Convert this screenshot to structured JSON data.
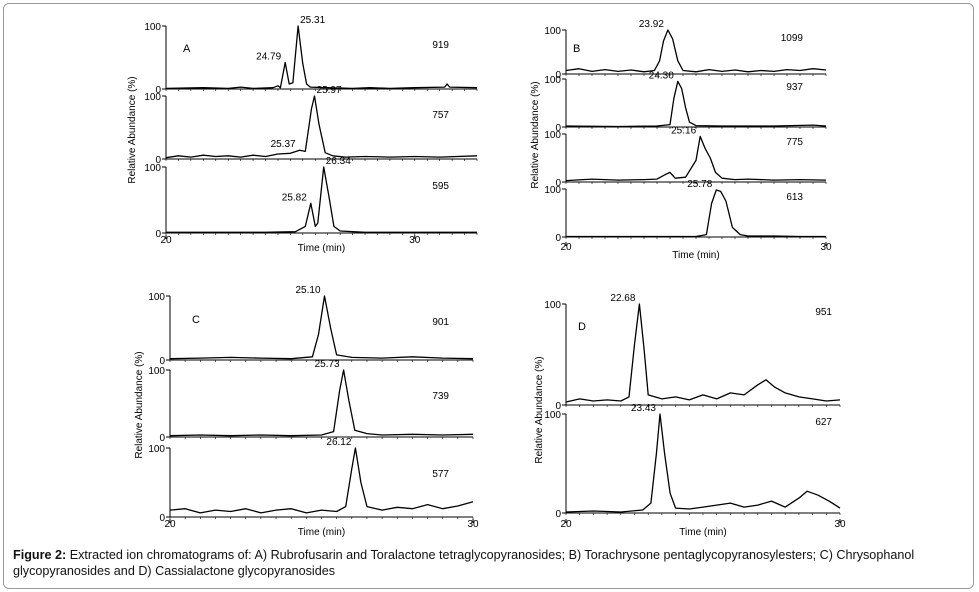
{
  "caption": {
    "label": "Figure 2:",
    "text": "Extracted ion chromatograms of: A) Rubrofusarin and Toralactone tetraglycopyranosides; B)  Torachrysone pentaglycopyranosylesters; C) Chrysophanol glycopyranosides and D) Cassialactone glycopyranosides"
  },
  "chart_data": [
    {
      "type": "line",
      "panel_label": "A",
      "xlabel": "Time (min)",
      "ylabel": "Relative Abundance (%)",
      "xlim": [
        20,
        32.5
      ],
      "x_ticks": [
        20,
        30
      ],
      "ylim": [
        0,
        100
      ],
      "y_ticks": [
        0,
        100
      ],
      "traces": [
        {
          "mz": "919",
          "peaks_rt": [
            "24.79",
            "25.31"
          ],
          "points": [
            [
              20,
              1
            ],
            [
              21.5,
              2
            ],
            [
              22.5,
              1
            ],
            [
              23,
              3
            ],
            [
              23.5,
              1
            ],
            [
              24.3,
              2
            ],
            [
              24.5,
              5
            ],
            [
              24.6,
              2
            ],
            [
              24.79,
              42
            ],
            [
              24.95,
              8
            ],
            [
              25.1,
              10
            ],
            [
              25.31,
              100
            ],
            [
              25.5,
              40
            ],
            [
              25.65,
              8
            ],
            [
              25.8,
              3
            ],
            [
              26.5,
              2
            ],
            [
              27.5,
              1
            ],
            [
              28.2,
              2
            ],
            [
              29,
              1
            ],
            [
              30,
              2
            ],
            [
              31.2,
              3
            ],
            [
              31.3,
              8
            ],
            [
              31.4,
              3
            ],
            [
              32.5,
              2
            ]
          ]
        },
        {
          "mz": "757",
          "peaks_rt": [
            "25.37",
            "25.97"
          ],
          "points": [
            [
              20,
              2
            ],
            [
              20.5,
              5
            ],
            [
              21,
              3
            ],
            [
              21.5,
              6
            ],
            [
              22,
              4
            ],
            [
              22.5,
              5
            ],
            [
              23,
              3
            ],
            [
              23.5,
              6
            ],
            [
              24,
              4
            ],
            [
              24.5,
              8
            ],
            [
              25,
              9
            ],
            [
              25.37,
              14
            ],
            [
              25.6,
              12
            ],
            [
              25.85,
              80
            ],
            [
              25.97,
              100
            ],
            [
              26.15,
              55
            ],
            [
              26.4,
              10
            ],
            [
              26.7,
              5
            ],
            [
              27.2,
              3
            ],
            [
              28,
              4
            ],
            [
              29,
              3
            ],
            [
              30,
              4
            ],
            [
              31,
              3
            ],
            [
              32.5,
              5
            ]
          ]
        },
        {
          "mz": "595",
          "peaks_rt": [
            "25.82",
            "26.34"
          ],
          "points": [
            [
              20,
              1
            ],
            [
              22,
              1
            ],
            [
              24,
              1
            ],
            [
              25.2,
              2
            ],
            [
              25.6,
              10
            ],
            [
              25.82,
              45
            ],
            [
              26.0,
              10
            ],
            [
              26.1,
              15
            ],
            [
              26.34,
              100
            ],
            [
              26.55,
              55
            ],
            [
              26.75,
              10
            ],
            [
              27,
              3
            ],
            [
              28,
              1
            ],
            [
              30,
              1
            ],
            [
              32.5,
              1
            ]
          ]
        }
      ]
    },
    {
      "type": "line",
      "panel_label": "B",
      "xlabel": "Time (min)",
      "ylabel": "Relative Abundance (%)",
      "xlim": [
        20,
        30
      ],
      "x_ticks": [
        20,
        30
      ],
      "ylim": [
        0,
        100
      ],
      "y_ticks": [
        0,
        100
      ],
      "traces": [
        {
          "mz": "1099",
          "peaks_rt": [
            "23.92"
          ],
          "points": [
            [
              20,
              8
            ],
            [
              20.5,
              12
            ],
            [
              21,
              6
            ],
            [
              21.5,
              10
            ],
            [
              22,
              6
            ],
            [
              22.5,
              9
            ],
            [
              23,
              5
            ],
            [
              23.4,
              8
            ],
            [
              23.6,
              30
            ],
            [
              23.75,
              75
            ],
            [
              23.92,
              100
            ],
            [
              24.1,
              80
            ],
            [
              24.3,
              30
            ],
            [
              24.5,
              8
            ],
            [
              25,
              5
            ],
            [
              25.5,
              10
            ],
            [
              26,
              6
            ],
            [
              26.5,
              9
            ],
            [
              27,
              5
            ],
            [
              27.5,
              8
            ],
            [
              28,
              6
            ],
            [
              28.5,
              10
            ],
            [
              29,
              8
            ],
            [
              29.5,
              12
            ],
            [
              30,
              9
            ]
          ]
        },
        {
          "mz": "937",
          "peaks_rt": [
            "24.30"
          ],
          "points": [
            [
              20,
              2
            ],
            [
              22,
              1
            ],
            [
              23.5,
              2
            ],
            [
              24.0,
              5
            ],
            [
              24.15,
              60
            ],
            [
              24.3,
              95
            ],
            [
              24.45,
              80
            ],
            [
              24.6,
              40
            ],
            [
              24.75,
              10
            ],
            [
              25,
              3
            ],
            [
              26,
              2
            ],
            [
              28,
              2
            ],
            [
              29.5,
              4
            ],
            [
              30,
              2
            ]
          ]
        },
        {
          "mz": "775",
          "peaks_rt": [
            "25.16"
          ],
          "points": [
            [
              20,
              3
            ],
            [
              21,
              6
            ],
            [
              22,
              4
            ],
            [
              23,
              5
            ],
            [
              23.5,
              6
            ],
            [
              23.8,
              15
            ],
            [
              24,
              20
            ],
            [
              24.2,
              8
            ],
            [
              24.6,
              10
            ],
            [
              25,
              45
            ],
            [
              25.16,
              95
            ],
            [
              25.35,
              70
            ],
            [
              25.55,
              50
            ],
            [
              25.75,
              20
            ],
            [
              26,
              8
            ],
            [
              26.5,
              5
            ],
            [
              27,
              6
            ],
            [
              28,
              4
            ],
            [
              29,
              5
            ],
            [
              30,
              4
            ]
          ]
        },
        {
          "mz": "613",
          "peaks_rt": [
            "25.78"
          ],
          "points": [
            [
              20,
              1
            ],
            [
              22,
              1
            ],
            [
              24,
              1
            ],
            [
              25,
              1
            ],
            [
              25.4,
              5
            ],
            [
              25.6,
              70
            ],
            [
              25.78,
              98
            ],
            [
              25.95,
              95
            ],
            [
              26.15,
              75
            ],
            [
              26.4,
              20
            ],
            [
              26.7,
              5
            ],
            [
              27,
              2
            ],
            [
              28,
              2
            ],
            [
              29,
              1
            ],
            [
              30,
              1
            ]
          ]
        }
      ]
    },
    {
      "type": "line",
      "panel_label": "C",
      "xlabel": "Time (min)",
      "ylabel": "Relative Abundance (%)",
      "xlim": [
        20,
        30
      ],
      "x_ticks": [
        20,
        30
      ],
      "ylim": [
        0,
        100
      ],
      "y_ticks": [
        0,
        100
      ],
      "traces": [
        {
          "mz": "901",
          "peaks_rt": [
            "25.10"
          ],
          "points": [
            [
              20,
              2
            ],
            [
              21,
              3
            ],
            [
              22,
              4
            ],
            [
              23,
              3
            ],
            [
              24,
              2
            ],
            [
              24.7,
              5
            ],
            [
              24.9,
              40
            ],
            [
              25.1,
              100
            ],
            [
              25.3,
              50
            ],
            [
              25.5,
              8
            ],
            [
              26,
              4
            ],
            [
              27,
              3
            ],
            [
              28,
              5
            ],
            [
              29,
              3
            ],
            [
              30,
              2
            ]
          ]
        },
        {
          "mz": "739",
          "peaks_rt": [
            "25.73"
          ],
          "points": [
            [
              20,
              2
            ],
            [
              21,
              3
            ],
            [
              22,
              2
            ],
            [
              23,
              3
            ],
            [
              24,
              2
            ],
            [
              25,
              3
            ],
            [
              25.4,
              8
            ],
            [
              25.6,
              70
            ],
            [
              25.73,
              100
            ],
            [
              25.9,
              55
            ],
            [
              26.1,
              10
            ],
            [
              26.5,
              5
            ],
            [
              27,
              3
            ],
            [
              28,
              4
            ],
            [
              29,
              3
            ],
            [
              30,
              4
            ]
          ]
        },
        {
          "mz": "577",
          "peaks_rt": [
            "26.12"
          ],
          "points": [
            [
              20,
              10
            ],
            [
              20.5,
              12
            ],
            [
              21,
              6
            ],
            [
              21.5,
              10
            ],
            [
              22,
              8
            ],
            [
              22.5,
              12
            ],
            [
              23,
              6
            ],
            [
              23.5,
              10
            ],
            [
              24,
              12
            ],
            [
              24.5,
              6
            ],
            [
              25,
              10
            ],
            [
              25.5,
              8
            ],
            [
              25.8,
              15
            ],
            [
              26.0,
              70
            ],
            [
              26.12,
              100
            ],
            [
              26.3,
              50
            ],
            [
              26.5,
              15
            ],
            [
              27,
              10
            ],
            [
              27.5,
              14
            ],
            [
              28,
              12
            ],
            [
              28.5,
              18
            ],
            [
              29,
              12
            ],
            [
              29.5,
              16
            ],
            [
              30,
              22
            ]
          ]
        }
      ]
    },
    {
      "type": "line",
      "panel_label": "D",
      "xlabel": "Time (min)",
      "ylabel": "Relative Abundance (%)",
      "xlim": [
        20,
        30
      ],
      "x_ticks": [
        20,
        30
      ],
      "ylim": [
        0,
        100
      ],
      "y_ticks": [
        0,
        100
      ],
      "traces": [
        {
          "mz": "951",
          "peaks_rt": [
            "22.68"
          ],
          "points": [
            [
              20,
              3
            ],
            [
              20.5,
              6
            ],
            [
              21,
              4
            ],
            [
              21.5,
              5
            ],
            [
              22,
              4
            ],
            [
              22.3,
              8
            ],
            [
              22.5,
              60
            ],
            [
              22.68,
              100
            ],
            [
              22.85,
              55
            ],
            [
              23.0,
              10
            ],
            [
              23.5,
              6
            ],
            [
              24,
              8
            ],
            [
              24.5,
              5
            ],
            [
              25,
              10
            ],
            [
              25.5,
              6
            ],
            [
              26,
              12
            ],
            [
              26.5,
              10
            ],
            [
              27,
              20
            ],
            [
              27.3,
              25
            ],
            [
              27.6,
              18
            ],
            [
              28,
              12
            ],
            [
              28.5,
              8
            ],
            [
              29,
              6
            ],
            [
              29.5,
              4
            ],
            [
              30,
              5
            ]
          ]
        },
        {
          "mz": "627",
          "peaks_rt": [
            "23.43"
          ],
          "points": [
            [
              20,
              1
            ],
            [
              21,
              2
            ],
            [
              22,
              1
            ],
            [
              22.8,
              3
            ],
            [
              23.1,
              10
            ],
            [
              23.3,
              60
            ],
            [
              23.43,
              100
            ],
            [
              23.6,
              60
            ],
            [
              23.8,
              20
            ],
            [
              24,
              5
            ],
            [
              24.5,
              4
            ],
            [
              25,
              6
            ],
            [
              25.5,
              8
            ],
            [
              26,
              10
            ],
            [
              26.5,
              6
            ],
            [
              27,
              8
            ],
            [
              27.5,
              12
            ],
            [
              28,
              6
            ],
            [
              28.5,
              15
            ],
            [
              28.8,
              22
            ],
            [
              29.2,
              18
            ],
            [
              29.6,
              12
            ],
            [
              30,
              5
            ]
          ]
        }
      ]
    }
  ]
}
